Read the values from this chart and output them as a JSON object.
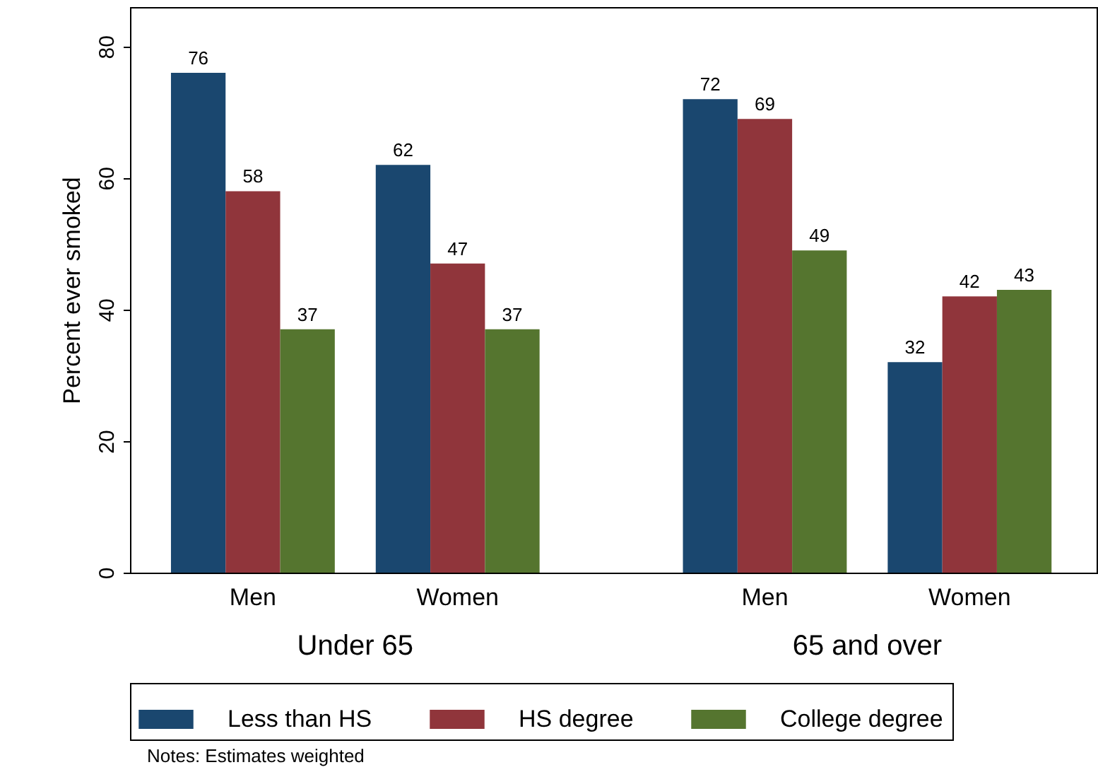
{
  "chart_data": {
    "type": "bar",
    "ylabel": "Percent ever smoked",
    "categories": [
      "Men",
      "Women",
      "Men",
      "Women"
    ],
    "series": [
      {
        "name": "Less than HS",
        "color": "#1a476f",
        "values": [
          76,
          62,
          72,
          32
        ]
      },
      {
        "name": "HS degree",
        "color": "#90353b",
        "values": [
          58,
          47,
          69,
          42
        ]
      },
      {
        "name": "College degree",
        "color": "#55752f",
        "values": [
          37,
          37,
          49,
          43
        ]
      }
    ],
    "ylim": [
      0,
      86
    ],
    "yticks": [
      0,
      20,
      40,
      60,
      80
    ],
    "data_labels": true,
    "legend": "bottom",
    "annotations": [
      "Under 65",
      "65 and over",
      "Notes: Estimates weighted"
    ]
  }
}
